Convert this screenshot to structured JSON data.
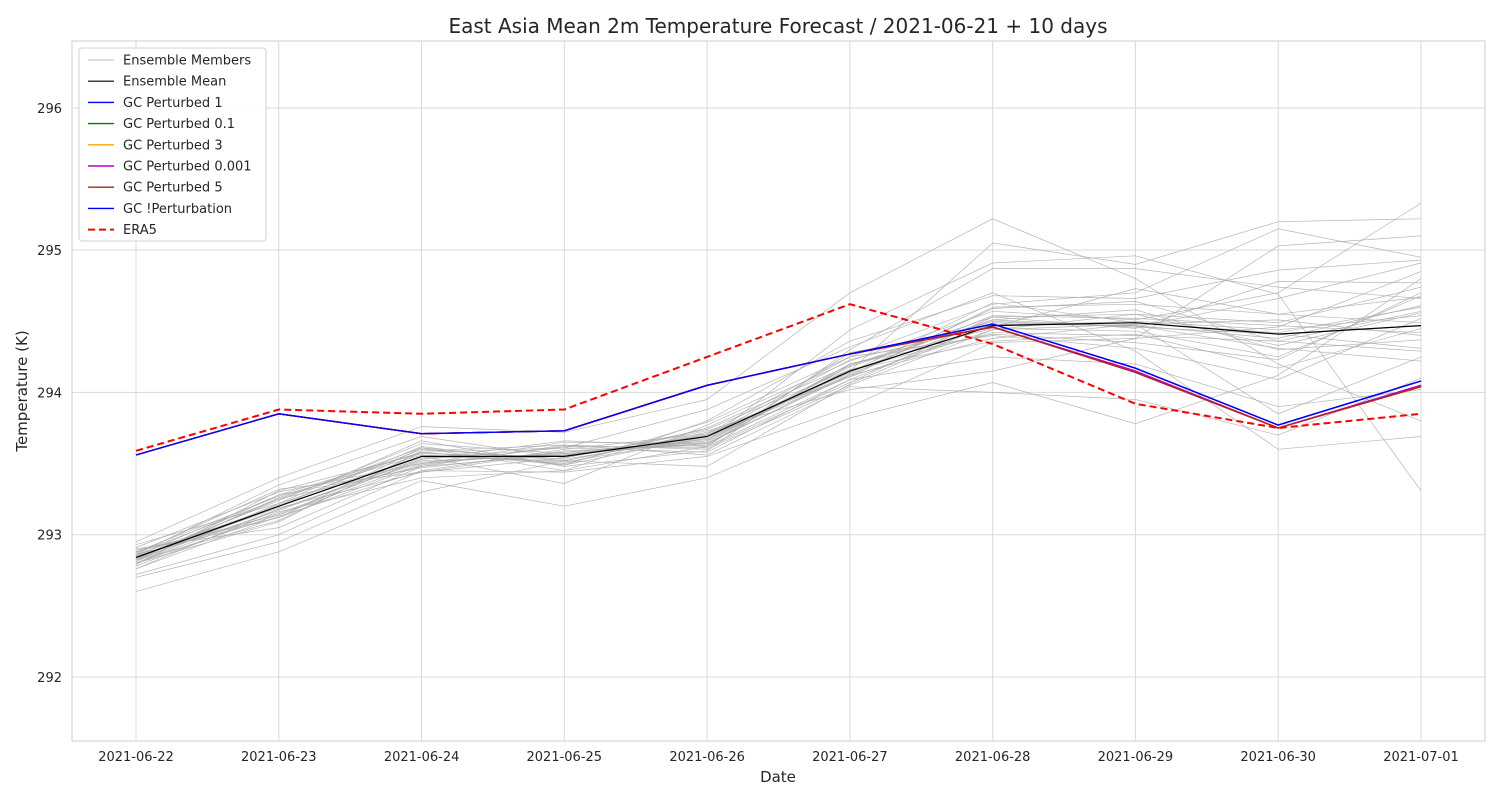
{
  "chart_data": {
    "type": "line",
    "title": "East Asia Mean 2m Temperature Forecast / 2021-06-21  + 10 days",
    "xlabel": "Date",
    "ylabel": "Temperature (K)",
    "x": [
      "2021-06-22",
      "2021-06-23",
      "2021-06-24",
      "2021-06-25",
      "2021-06-26",
      "2021-06-27",
      "2021-06-28",
      "2021-06-29",
      "2021-06-30",
      "2021-07-01"
    ],
    "ylim": [
      291.55,
      296.47
    ],
    "yticks": [
      "292",
      "293",
      "294",
      "295",
      "296"
    ],
    "grid": true,
    "legend_position": "upper-left",
    "ensemble_legend_label": "Ensemble Members",
    "ensemble_color": "#a9a9a9",
    "ensemble_members": [
      [
        292.6,
        292.88,
        293.3,
        293.52,
        293.48,
        294.06,
        294.49,
        294.47,
        294.31,
        294.22
      ],
      [
        292.72,
        293.0,
        293.45,
        293.44,
        293.55,
        293.9,
        294.35,
        294.38,
        294.46,
        294.85
      ],
      [
        292.8,
        293.18,
        293.51,
        293.57,
        293.64,
        294.13,
        294.51,
        294.46,
        294.66,
        294.91
      ],
      [
        292.82,
        293.1,
        293.58,
        293.49,
        293.69,
        294.11,
        294.44,
        294.55,
        294.33,
        294.56
      ],
      [
        292.91,
        293.3,
        293.5,
        293.65,
        293.64,
        294.19,
        294.53,
        294.45,
        294.78,
        294.77
      ],
      [
        292.76,
        293.13,
        293.45,
        293.6,
        293.71,
        294.12,
        294.59,
        294.64,
        294.36,
        294.29
      ],
      [
        292.84,
        293.24,
        293.64,
        293.57,
        293.65,
        294.2,
        294.41,
        294.35,
        294.23,
        294.7
      ],
      [
        292.88,
        293.27,
        293.56,
        293.51,
        293.68,
        294.14,
        294.63,
        294.49,
        294.42,
        294.6
      ],
      [
        292.78,
        293.16,
        293.4,
        293.45,
        293.62,
        294.28,
        294.46,
        294.73,
        294.55,
        294.67
      ],
      [
        292.86,
        293.35,
        293.69,
        293.54,
        293.74,
        294.16,
        294.36,
        294.41,
        294.17,
        294.45
      ],
      [
        292.93,
        293.22,
        293.55,
        293.36,
        293.77,
        294.22,
        294.57,
        294.51,
        294.7,
        295.33
      ],
      [
        292.8,
        293.09,
        293.59,
        293.63,
        293.6,
        294.05,
        294.44,
        294.48,
        294.51,
        294.4
      ],
      [
        292.85,
        293.28,
        293.47,
        293.58,
        293.66,
        294.18,
        294.51,
        294.58,
        294.3,
        294.37
      ],
      [
        292.82,
        293.2,
        293.62,
        293.49,
        293.79,
        294.25,
        294.4,
        294.31,
        294.09,
        294.52
      ],
      [
        292.88,
        293.14,
        293.53,
        293.61,
        293.58,
        294.09,
        294.48,
        294.47,
        294.38,
        294.61
      ],
      [
        292.79,
        293.31,
        293.57,
        293.55,
        293.7,
        294.14,
        294.54,
        294.52,
        294.47,
        294.42
      ],
      [
        292.84,
        293.19,
        293.44,
        293.59,
        293.63,
        294.2,
        294.45,
        294.43,
        294.25,
        294.68
      ],
      [
        292.87,
        293.25,
        293.61,
        293.52,
        293.72,
        294.11,
        294.6,
        294.62,
        294.55,
        294.49
      ],
      [
        292.83,
        293.17,
        293.54,
        293.56,
        293.67,
        294.16,
        294.42,
        294.4,
        294.36,
        294.57
      ],
      [
        292.81,
        293.26,
        293.58,
        293.5,
        293.75,
        294.19,
        294.5,
        294.46,
        294.41,
        294.31
      ],
      [
        292.86,
        293.12,
        293.49,
        293.62,
        293.61,
        294.07,
        294.53,
        294.55,
        294.49,
        294.74
      ],
      [
        292.84,
        293.21,
        293.6,
        293.53,
        293.69,
        294.23,
        294.47,
        294.5,
        294.44,
        294.54
      ],
      [
        292.7,
        292.95,
        293.38,
        293.2,
        293.4,
        293.82,
        294.07,
        293.78,
        294.12,
        294.8
      ],
      [
        292.95,
        293.4,
        293.76,
        293.72,
        293.95,
        294.7,
        295.22,
        294.8,
        294.2,
        293.8
      ],
      [
        292.85,
        293.15,
        293.52,
        293.55,
        293.7,
        294.15,
        295.05,
        294.9,
        295.2,
        295.22
      ],
      [
        292.8,
        293.22,
        293.66,
        293.48,
        293.59,
        294.3,
        294.87,
        294.87,
        294.74,
        294.66
      ],
      [
        292.9,
        293.05,
        293.48,
        293.56,
        293.66,
        294.44,
        294.91,
        294.96,
        294.69,
        293.31
      ],
      [
        292.82,
        293.28,
        293.58,
        293.61,
        293.88,
        294.32,
        294.7,
        294.29,
        293.6,
        293.69
      ],
      [
        292.87,
        293.32,
        293.44,
        293.54,
        293.73,
        294.02,
        294.15,
        294.38,
        295.03,
        295.1
      ],
      [
        292.76,
        293.18,
        293.53,
        293.66,
        293.62,
        294.09,
        294.25,
        294.2,
        293.9,
        294.02
      ],
      [
        292.89,
        293.12,
        293.61,
        293.45,
        293.8,
        294.36,
        294.68,
        294.66,
        294.86,
        294.93
      ],
      [
        292.83,
        293.25,
        293.48,
        293.63,
        293.56,
        294.04,
        294.0,
        293.95,
        293.7,
        294.1
      ],
      [
        292.86,
        293.2,
        293.55,
        293.52,
        293.71,
        294.25,
        294.62,
        294.7,
        295.15,
        294.95
      ],
      [
        292.8,
        293.14,
        293.5,
        293.58,
        293.64,
        294.12,
        294.38,
        294.48,
        293.85,
        294.25
      ]
    ],
    "series": [
      {
        "name": "Ensemble Mean",
        "color": "#000000",
        "style": "solid",
        "width": 1.2,
        "values": [
          292.84,
          293.2,
          293.55,
          293.55,
          293.69,
          294.15,
          294.47,
          294.49,
          294.41,
          294.47
        ]
      },
      {
        "name": "GC Perturbed 1",
        "color": "#0000ff",
        "style": "solid",
        "width": 1.4,
        "values": [
          293.56,
          293.85,
          293.71,
          293.73,
          294.05,
          294.27,
          294.48,
          294.17,
          293.77,
          294.08
        ]
      },
      {
        "name": "GC Perturbed 0.1",
        "color": "#008000",
        "style": "solid",
        "width": 1.4,
        "values": [
          293.56,
          293.85,
          293.71,
          293.73,
          294.05,
          294.27,
          294.46,
          294.15,
          293.75,
          294.05
        ]
      },
      {
        "name": "GC Perturbed 3",
        "color": "#ffa500",
        "style": "solid",
        "width": 1.4,
        "values": [
          293.56,
          293.85,
          293.71,
          293.73,
          294.05,
          294.27,
          294.46,
          294.15,
          293.75,
          294.04
        ]
      },
      {
        "name": "GC Perturbed 0.001",
        "color": "#c000c0",
        "style": "solid",
        "width": 1.4,
        "values": [
          293.56,
          293.85,
          293.71,
          293.73,
          294.05,
          294.27,
          294.46,
          294.15,
          293.75,
          294.05
        ]
      },
      {
        "name": "GC Perturbed 5",
        "color": "#b22222",
        "style": "solid",
        "width": 1.4,
        "values": [
          293.56,
          293.85,
          293.71,
          293.73,
          294.05,
          294.27,
          294.46,
          294.14,
          293.75,
          294.04
        ]
      },
      {
        "name": "GC !Perturbation",
        "color": "#0000ff",
        "style": "solid",
        "width": 1.4,
        "values": [
          293.56,
          293.85,
          293.71,
          293.73,
          294.05,
          294.27,
          294.48,
          294.17,
          293.77,
          294.08
        ]
      },
      {
        "name": "ERA5",
        "color": "#ff0000",
        "style": "dashed",
        "width": 2,
        "values": [
          293.59,
          293.88,
          293.85,
          293.88,
          294.25,
          294.62,
          294.34,
          293.92,
          293.75,
          293.85
        ]
      }
    ]
  }
}
